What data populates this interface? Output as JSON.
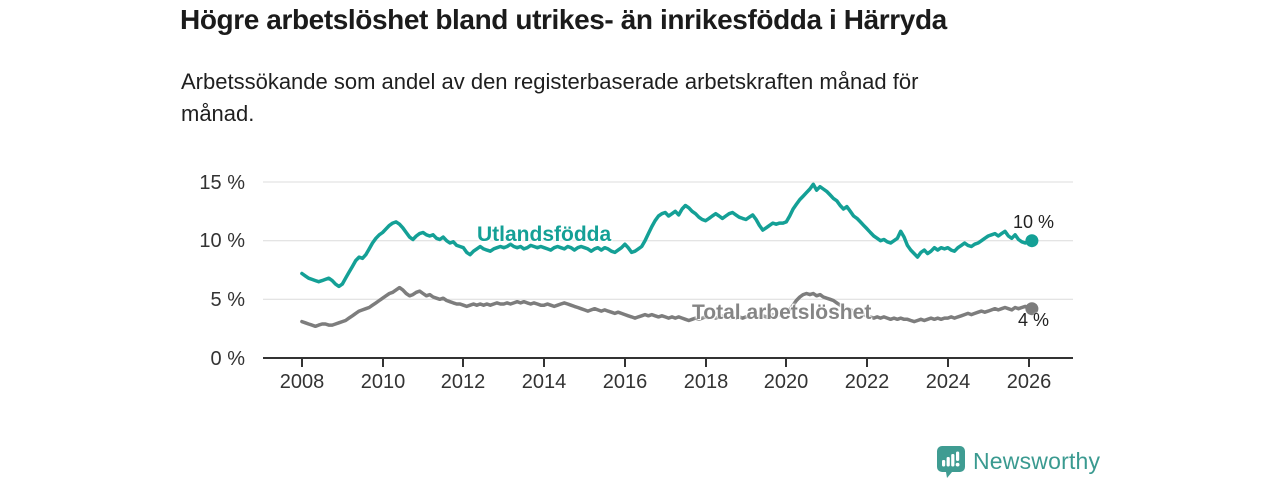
{
  "header": {
    "title": "Högre arbetslöshet bland utrikes- än inrikesfödda i Härryda",
    "subtitle": "Arbetssökande som andel av den registerbaserade arbetskraften månad för månad."
  },
  "chart_data": {
    "type": "line",
    "title": "Högre arbetslöshet bland utrikes- än inrikesfödda i Härryda",
    "subtitle": "Arbetssökande som andel av den registerbaserade arbetskraften månad för månad.",
    "xlabel": "",
    "ylabel": "",
    "ylim": [
      0,
      15
    ],
    "grid": true,
    "x_unit": "month",
    "x_start": "2008-01",
    "x_end": "2026-02",
    "x_tick_labels": [
      "2008",
      "2010",
      "2012",
      "2014",
      "2016",
      "2018",
      "2020",
      "2022",
      "2024",
      "2026"
    ],
    "y_tick_labels": [
      "0 %",
      "5 %",
      "10 %",
      "15 %"
    ],
    "series": [
      {
        "id": "utlandsfodda",
        "name": "Utlandsfödda",
        "color": "#14a096",
        "end_label": "10 %",
        "end_value": 10,
        "values": [
          7.2,
          7.0,
          6.8,
          6.7,
          6.6,
          6.5,
          6.6,
          6.7,
          6.8,
          6.6,
          6.3,
          6.1,
          6.3,
          6.8,
          7.3,
          7.8,
          8.3,
          8.6,
          8.5,
          8.8,
          9.3,
          9.8,
          10.2,
          10.5,
          10.7,
          11.0,
          11.3,
          11.5,
          11.6,
          11.4,
          11.1,
          10.7,
          10.3,
          10.1,
          10.4,
          10.6,
          10.7,
          10.5,
          10.4,
          10.5,
          10.2,
          10.1,
          10.3,
          10.0,
          9.8,
          9.9,
          9.6,
          9.5,
          9.4,
          9.0,
          8.8,
          9.1,
          9.3,
          9.5,
          9.3,
          9.2,
          9.1,
          9.3,
          9.4,
          9.5,
          9.4,
          9.5,
          9.7,
          9.5,
          9.4,
          9.5,
          9.3,
          9.4,
          9.6,
          9.5,
          9.4,
          9.5,
          9.4,
          9.3,
          9.2,
          9.4,
          9.5,
          9.4,
          9.3,
          9.5,
          9.4,
          9.2,
          9.4,
          9.5,
          9.4,
          9.3,
          9.1,
          9.3,
          9.4,
          9.2,
          9.4,
          9.3,
          9.1,
          9.0,
          9.2,
          9.4,
          9.7,
          9.4,
          9.0,
          9.1,
          9.3,
          9.5,
          10.0,
          10.6,
          11.2,
          11.7,
          12.1,
          12.3,
          12.4,
          12.1,
          12.3,
          12.5,
          12.2,
          12.7,
          13.0,
          12.8,
          12.5,
          12.3,
          12.0,
          11.8,
          11.7,
          11.9,
          12.1,
          12.3,
          12.1,
          11.9,
          12.1,
          12.3,
          12.4,
          12.2,
          12.0,
          11.9,
          11.8,
          12.0,
          12.2,
          11.8,
          11.3,
          10.9,
          11.1,
          11.3,
          11.5,
          11.4,
          11.5,
          11.5,
          11.6,
          12.1,
          12.7,
          13.1,
          13.5,
          13.8,
          14.1,
          14.4,
          14.8,
          14.3,
          14.6,
          14.4,
          14.2,
          13.9,
          13.6,
          13.4,
          13.0,
          12.7,
          12.9,
          12.5,
          12.1,
          11.9,
          11.6,
          11.3,
          11.0,
          10.7,
          10.4,
          10.2,
          10.0,
          10.1,
          9.9,
          9.8,
          10.0,
          10.2,
          10.8,
          10.3,
          9.6,
          9.2,
          8.9,
          8.6,
          9.0,
          9.2,
          8.9,
          9.1,
          9.4,
          9.2,
          9.4,
          9.3,
          9.4,
          9.2,
          9.1,
          9.4,
          9.6,
          9.8,
          9.6,
          9.5,
          9.7,
          9.8,
          10.0,
          10.2,
          10.4,
          10.5,
          10.6,
          10.4,
          10.6,
          10.8,
          10.4,
          10.2,
          10.5,
          10.1,
          9.9,
          9.8,
          9.9,
          10.0
        ]
      },
      {
        "id": "total-arbetsloshet",
        "name": "Total arbetslöshet",
        "color": "#7d7d7d",
        "end_label": "4 %",
        "end_value": 4,
        "values": [
          3.1,
          3.0,
          2.9,
          2.8,
          2.7,
          2.8,
          2.9,
          2.9,
          2.8,
          2.8,
          2.9,
          3.0,
          3.1,
          3.2,
          3.4,
          3.6,
          3.8,
          4.0,
          4.1,
          4.2,
          4.3,
          4.5,
          4.7,
          4.9,
          5.1,
          5.3,
          5.5,
          5.6,
          5.8,
          6.0,
          5.8,
          5.5,
          5.3,
          5.4,
          5.6,
          5.7,
          5.5,
          5.3,
          5.4,
          5.2,
          5.1,
          5.0,
          5.1,
          4.9,
          4.8,
          4.7,
          4.6,
          4.6,
          4.5,
          4.4,
          4.5,
          4.6,
          4.5,
          4.6,
          4.5,
          4.6,
          4.5,
          4.6,
          4.7,
          4.6,
          4.6,
          4.7,
          4.6,
          4.7,
          4.8,
          4.7,
          4.8,
          4.7,
          4.6,
          4.7,
          4.6,
          4.5,
          4.5,
          4.6,
          4.5,
          4.4,
          4.5,
          4.6,
          4.7,
          4.6,
          4.5,
          4.4,
          4.3,
          4.2,
          4.1,
          4.0,
          4.1,
          4.2,
          4.1,
          4.0,
          4.1,
          4.0,
          3.9,
          3.8,
          3.9,
          3.8,
          3.7,
          3.6,
          3.5,
          3.4,
          3.5,
          3.6,
          3.7,
          3.6,
          3.7,
          3.6,
          3.5,
          3.6,
          3.5,
          3.4,
          3.5,
          3.4,
          3.5,
          3.4,
          3.3,
          3.2,
          3.3,
          3.4,
          3.3,
          3.4,
          3.5,
          3.4,
          3.5,
          3.4,
          3.5,
          3.6,
          3.5,
          3.4,
          3.5,
          3.4,
          3.5,
          3.4,
          3.5,
          3.6,
          3.5,
          3.6,
          3.5,
          3.6,
          3.5,
          3.6,
          3.7,
          3.6,
          3.7,
          3.8,
          3.9,
          4.1,
          4.5,
          4.9,
          5.2,
          5.4,
          5.5,
          5.4,
          5.5,
          5.3,
          5.4,
          5.2,
          5.1,
          5.0,
          4.9,
          4.7,
          4.5,
          4.3,
          4.2,
          4.1,
          4.0,
          3.9,
          3.8,
          3.7,
          3.6,
          3.5,
          3.4,
          3.5,
          3.4,
          3.5,
          3.4,
          3.3,
          3.4,
          3.3,
          3.4,
          3.3,
          3.3,
          3.2,
          3.1,
          3.2,
          3.3,
          3.2,
          3.3,
          3.4,
          3.3,
          3.4,
          3.3,
          3.4,
          3.4,
          3.5,
          3.4,
          3.5,
          3.6,
          3.7,
          3.8,
          3.7,
          3.8,
          3.9,
          4.0,
          3.9,
          4.0,
          4.1,
          4.2,
          4.1,
          4.2,
          4.3,
          4.2,
          4.1,
          4.3,
          4.2,
          4.3,
          4.4,
          4.3,
          4.2
        ]
      }
    ]
  },
  "footer": {
    "brand": "Newsworthy",
    "logo_color": "#3f9c92"
  }
}
